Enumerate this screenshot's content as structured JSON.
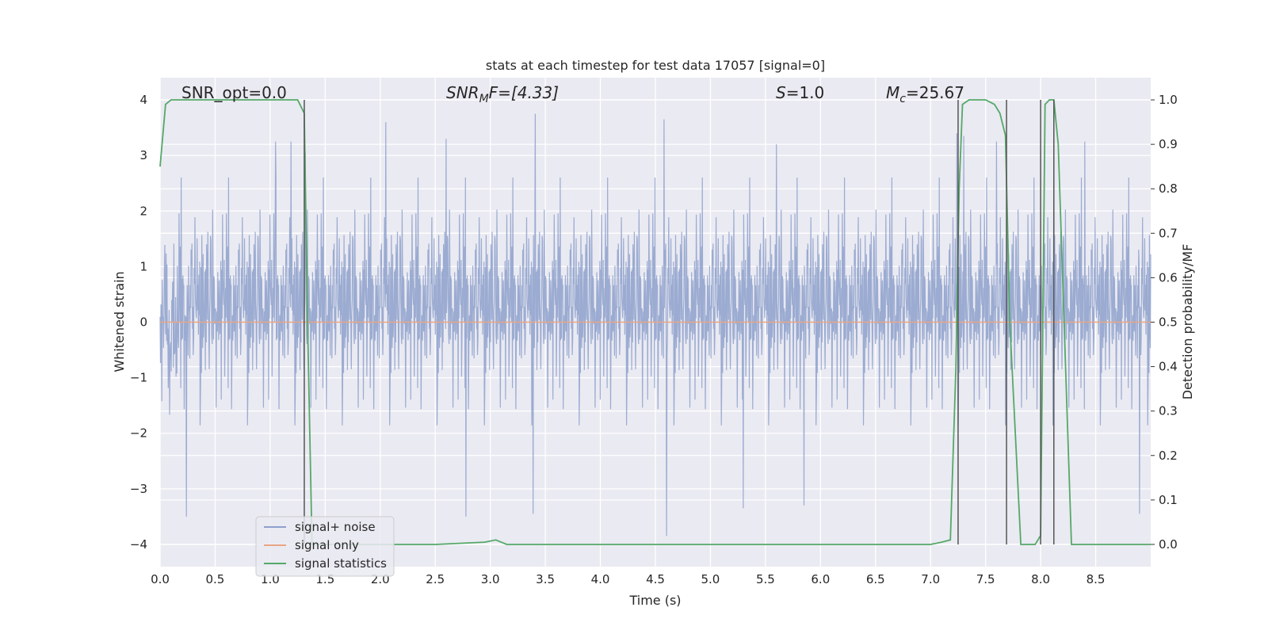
{
  "chart_data": {
    "type": "line",
    "title": "stats at each timestep for test data 17057 [signal=0]",
    "xlabel": "Time (s)",
    "ylabel": "Whitened strain",
    "ylabel_right": "Detection probability/MF",
    "xlim": [
      0.0,
      9.0
    ],
    "ylim": [
      -4.4,
      4.4
    ],
    "ylim_right": [
      -0.05,
      1.05
    ],
    "x_ticks": [
      "0.0",
      "0.5",
      "1.0",
      "1.5",
      "2.0",
      "2.5",
      "3.0",
      "3.5",
      "4.0",
      "4.5",
      "5.0",
      "5.5",
      "6.0",
      "6.5",
      "7.0",
      "7.5",
      "8.0",
      "8.5"
    ],
    "y_ticks": [
      "4",
      "3",
      "2",
      "1",
      "0",
      "−1",
      "−2",
      "−3",
      "−4"
    ],
    "y_right_ticks": [
      "1.0",
      "0.9",
      "0.8",
      "0.7",
      "0.6",
      "0.5",
      "0.4",
      "0.3",
      "0.2",
      "0.1",
      "0.0"
    ],
    "grid": true,
    "legend_placement": "lower-left",
    "annotations": {
      "snr_opt": "SNR_opt=0.0",
      "snr_mf_sym": "SNR",
      "snr_mf_sub": "M",
      "snr_mf_rest": "F=[4.33]",
      "s_sym": "S",
      "s_rest": "=1.0",
      "mc_sym": "M",
      "mc_sub": "c",
      "mc_rest": "=25.67"
    },
    "series": [
      {
        "name": "signal+ noise",
        "color": "#8da0cb",
        "envelope_note": "dense whitened noise; peak amplitudes sampled",
        "peaks": [
          {
            "x": 1.32,
            "y": 3.05
          },
          {
            "x": 1.05,
            "y": 3.25
          },
          {
            "x": 1.19,
            "y": 3.25
          },
          {
            "x": 2.05,
            "y": 3.6
          },
          {
            "x": 3.41,
            "y": 3.75
          },
          {
            "x": 4.58,
            "y": 3.65
          },
          {
            "x": 2.6,
            "y": 3.3
          },
          {
            "x": 5.6,
            "y": 3.2
          },
          {
            "x": 7.24,
            "y": 3.4
          },
          {
            "x": 7.3,
            "y": 3.35
          },
          {
            "x": 7.6,
            "y": 3.25
          },
          {
            "x": 8.12,
            "y": 3.5
          },
          {
            "x": 8.4,
            "y": 3.25
          },
          {
            "x": 4.6,
            "y": -3.85
          },
          {
            "x": 0.24,
            "y": -3.5
          },
          {
            "x": 2.78,
            "y": -3.5
          },
          {
            "x": 3.39,
            "y": -3.45
          },
          {
            "x": 5.3,
            "y": -3.35
          },
          {
            "x": 5.85,
            "y": -3.3
          },
          {
            "x": 8.9,
            "y": -3.45
          }
        ]
      },
      {
        "name": "signal only",
        "color": "#e8a585",
        "x": [
          0.0,
          9.0
        ],
        "y": [
          0.0,
          0.0
        ]
      },
      {
        "name": "signal statistics",
        "color": "#55a868",
        "axis": "right",
        "x": [
          0.0,
          0.05,
          0.1,
          0.2,
          1.0,
          1.25,
          1.31,
          1.34,
          1.38,
          1.5,
          2.0,
          2.5,
          2.95,
          3.05,
          3.15,
          4.0,
          5.0,
          6.0,
          7.0,
          7.1,
          7.18,
          7.23,
          7.26,
          7.29,
          7.35,
          7.5,
          7.58,
          7.63,
          7.68,
          7.72,
          7.82,
          7.95,
          8.0,
          8.04,
          8.08,
          8.12,
          8.16,
          8.24,
          8.28,
          8.4,
          9.0
        ],
        "y": [
          0.85,
          0.99,
          1.0,
          1.0,
          1.0,
          1.0,
          0.97,
          0.5,
          0.0,
          0.0,
          0.0,
          0.0,
          0.005,
          0.01,
          0.0,
          0.0,
          0.0,
          0.0,
          0.0,
          0.005,
          0.01,
          0.4,
          0.8,
          0.99,
          1.0,
          1.0,
          0.99,
          0.97,
          0.92,
          0.5,
          0.0,
          0.0,
          0.02,
          0.99,
          1.0,
          1.0,
          0.9,
          0.3,
          0.0,
          0.0,
          0.0
        ]
      }
    ],
    "vertical_markers": {
      "color": "#555555",
      "x": [
        1.31,
        7.25,
        7.69,
        8.0,
        8.12
      ]
    }
  }
}
